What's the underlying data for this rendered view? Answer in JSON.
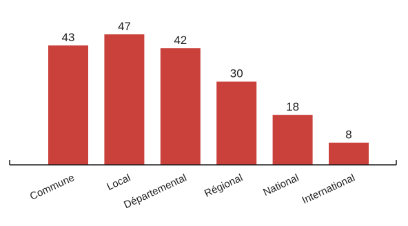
{
  "colors": {
    "bar": "#C9413A",
    "axis": "#1a1a1a",
    "text": "#222222"
  },
  "chart_data": {
    "type": "bar",
    "categories": [
      "Commune",
      "Local",
      "Départemental",
      "Régional",
      "National",
      "International"
    ],
    "values": [
      43,
      47,
      42,
      30,
      18,
      8
    ],
    "data_labels": [
      "43",
      "47",
      "42",
      "30",
      "18",
      "8"
    ],
    "title": "",
    "xlabel": "",
    "ylabel": "",
    "ylim": [
      0,
      47
    ],
    "grid": false,
    "legend": "none"
  }
}
